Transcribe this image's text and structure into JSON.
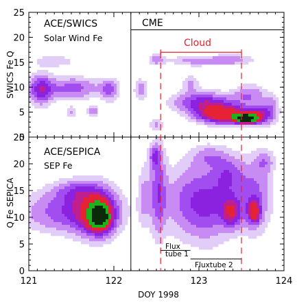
{
  "chart_data": [
    {
      "type": "heatmap",
      "panel": "top",
      "title_lines": [
        "ACE/SWICS",
        "Solar Wind Fe"
      ],
      "ylabel": "SWICS Fe Q",
      "ylim": [
        0,
        25
      ],
      "yticks": [
        0,
        5,
        10,
        15,
        20,
        25
      ],
      "region_label": "CME",
      "bracket_label": "Cloud",
      "blobs": [
        {
          "x": 121.14,
          "y": 9.5,
          "sx": 0.1,
          "sy": 2.2,
          "level": 1.3
        },
        {
          "x": 121.52,
          "y": 9.8,
          "sx": 0.22,
          "sy": 1.6,
          "level": 1.0
        },
        {
          "x": 121.95,
          "y": 9.5,
          "sx": 0.08,
          "sy": 1.6,
          "level": 0.9
        },
        {
          "x": 121.75,
          "y": 5.2,
          "sx": 0.05,
          "sy": 0.8,
          "level": 0.8
        },
        {
          "x": 121.5,
          "y": 5.0,
          "sx": 0.04,
          "sy": 0.8,
          "level": 0.6
        },
        {
          "x": 121.3,
          "y": 15.2,
          "sx": 0.18,
          "sy": 0.8,
          "level": 0.55
        },
        {
          "x": 122.5,
          "y": 15.5,
          "sx": 0.07,
          "sy": 0.8,
          "level": 0.7
        },
        {
          "x": 122.95,
          "y": 15.3,
          "sx": 0.22,
          "sy": 0.8,
          "level": 0.65
        },
        {
          "x": 123.4,
          "y": 15.5,
          "sx": 0.18,
          "sy": 0.8,
          "level": 0.7
        },
        {
          "x": 122.32,
          "y": 9.5,
          "sx": 0.06,
          "sy": 1.6,
          "level": 0.7
        },
        {
          "x": 122.5,
          "y": 2.5,
          "sx": 0.06,
          "sy": 1.0,
          "level": 0.6
        },
        {
          "x": 122.9,
          "y": 10.8,
          "sx": 0.07,
          "sy": 1.2,
          "level": 0.6
        },
        {
          "x": 123.05,
          "y": 7.0,
          "sx": 0.25,
          "sy": 1.5,
          "level": 1.3
        },
        {
          "x": 123.3,
          "y": 4.5,
          "sx": 0.22,
          "sy": 1.3,
          "level": 2.3
        },
        {
          "x": 123.55,
          "y": 3.7,
          "sx": 0.08,
          "sy": 0.6,
          "level": 4.2
        },
        {
          "x": 123.7,
          "y": 4.2,
          "sx": 0.08,
          "sy": 1.2,
          "level": 1.4
        },
        {
          "x": 123.6,
          "y": 8.5,
          "sx": 0.13,
          "sy": 1.5,
          "level": 0.8
        },
        {
          "x": 123.85,
          "y": 5.5,
          "sx": 0.07,
          "sy": 2.0,
          "level": 0.8
        }
      ]
    },
    {
      "type": "heatmap",
      "panel": "bottom",
      "title_lines": [
        "ACE/SEPICA",
        "SEP Fe"
      ],
      "ylabel": "Q Fe SEPICA",
      "xlabel": "DOY 1998",
      "ylim": [
        0,
        25
      ],
      "yticks": [
        0,
        5,
        10,
        15,
        20,
        25
      ],
      "xlim": [
        121,
        124
      ],
      "xticks": [
        121,
        122,
        123,
        124
      ],
      "annotations": [
        "Flux",
        "tube 1",
        "Fluxtube 2"
      ],
      "blobs": [
        {
          "x": 121.45,
          "y": 11.0,
          "sx": 0.38,
          "sy": 2.8,
          "level": 1.05
        },
        {
          "x": 121.8,
          "y": 11.0,
          "sx": 0.18,
          "sy": 3.5,
          "level": 1.3
        },
        {
          "x": 121.83,
          "y": 10.3,
          "sx": 0.09,
          "sy": 1.8,
          "level": 2.6
        },
        {
          "x": 121.85,
          "y": 10.0,
          "sx": 0.05,
          "sy": 0.9,
          "level": 2.0
        },
        {
          "x": 121.55,
          "y": 15.0,
          "sx": 0.2,
          "sy": 1.5,
          "level": 0.7
        },
        {
          "x": 122.52,
          "y": 15.0,
          "sx": 0.07,
          "sy": 6.0,
          "level": 1.0
        },
        {
          "x": 122.48,
          "y": 21.5,
          "sx": 0.05,
          "sy": 1.5,
          "level": 0.8
        },
        {
          "x": 122.85,
          "y": 13.0,
          "sx": 0.2,
          "sy": 5.0,
          "level": 0.8
        },
        {
          "x": 123.15,
          "y": 12.5,
          "sx": 0.18,
          "sy": 5.0,
          "level": 0.95
        },
        {
          "x": 123.38,
          "y": 11.0,
          "sx": 0.08,
          "sy": 2.0,
          "level": 1.4
        },
        {
          "x": 123.35,
          "y": 18.0,
          "sx": 0.12,
          "sy": 2.5,
          "level": 0.8
        },
        {
          "x": 123.65,
          "y": 14.0,
          "sx": 0.15,
          "sy": 5.0,
          "level": 0.95
        },
        {
          "x": 123.65,
          "y": 11.0,
          "sx": 0.05,
          "sy": 1.5,
          "level": 1.6
        },
        {
          "x": 123.12,
          "y": 21.5,
          "sx": 0.15,
          "sy": 1.5,
          "level": 0.55
        },
        {
          "x": 123.78,
          "y": 20.5,
          "sx": 0.08,
          "sy": 1.5,
          "level": 0.6
        },
        {
          "x": 122.35,
          "y": 14.0,
          "sx": 0.05,
          "sy": 4.0,
          "level": 0.6
        }
      ]
    }
  ],
  "markers": {
    "solid_line_x": 122.2,
    "dashed_line_x": [
      122.55,
      123.5
    ],
    "cloud_range": [
      122.55,
      123.5
    ],
    "fluxtube1_range": [
      122.55,
      122.9
    ],
    "fluxtube2_range": [
      122.9,
      123.5
    ],
    "cme_line_range": [
      122.2,
      124.0
    ],
    "cme_line_y": 21.5,
    "cloud_bracket_y": 17.0,
    "fluxtube1_y": 3.8,
    "fluxtube2_y": 2.2
  },
  "colors": {
    "marker_red": "#e8202a",
    "palette": [
      "#e2ccf8",
      "#c88af3",
      "#a24df0",
      "#8a22e0",
      "#c0208f",
      "#e62235",
      "#1db31d",
      "#0a2a0a"
    ]
  }
}
